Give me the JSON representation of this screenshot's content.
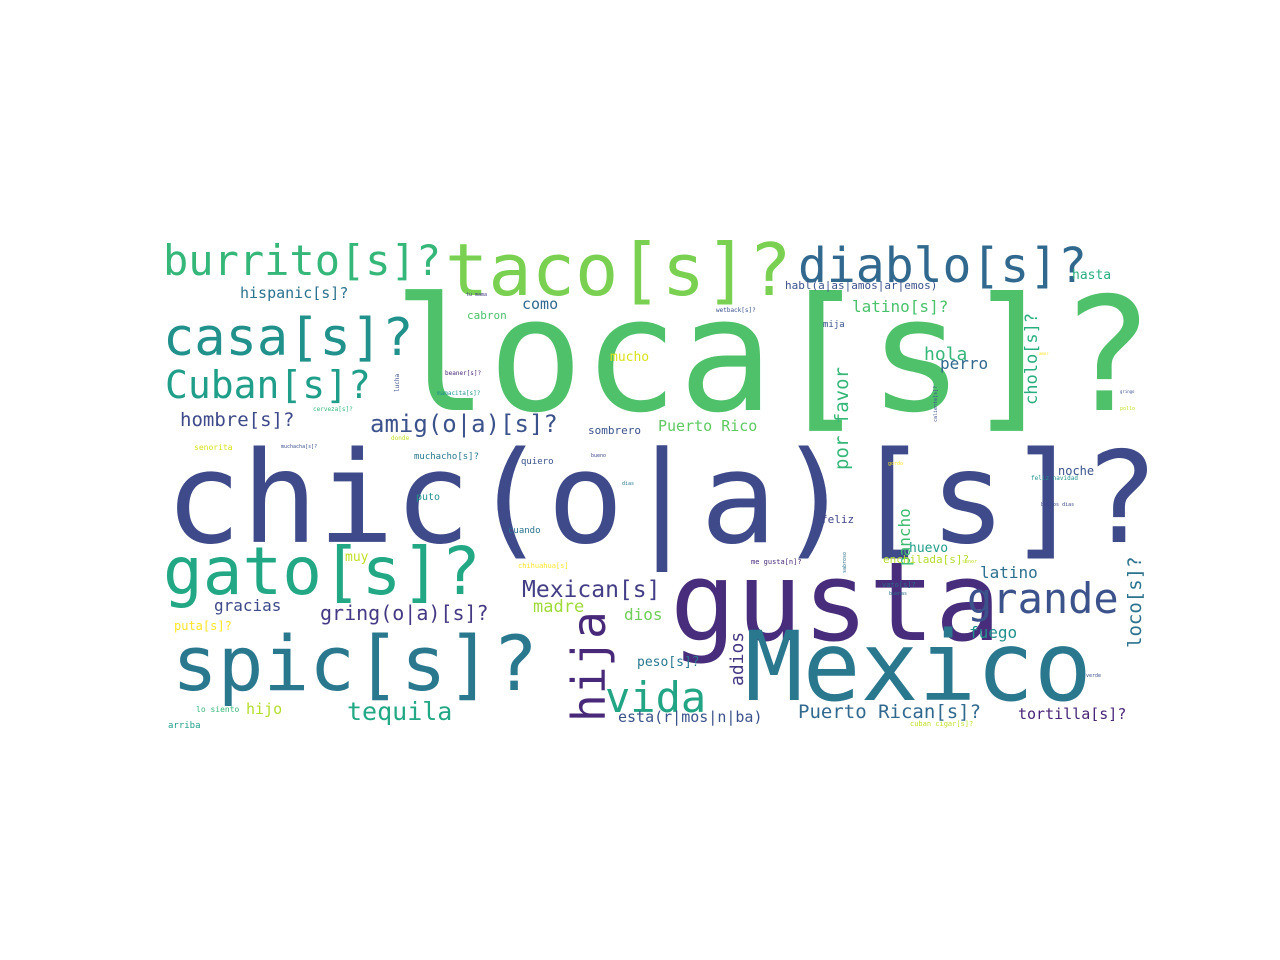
{
  "words": [
    {
      "text": "loca[s]?",
      "color": "#4fc16a"
    },
    {
      "text": "chic(o|a)[s]?",
      "color": "#3e4a89"
    },
    {
      "text": "gusta",
      "color": "#472d7b"
    },
    {
      "text": "Mexico",
      "color": "#2a788e"
    },
    {
      "text": "taco[s]?",
      "color": "#7ad151"
    },
    {
      "text": "spic[s]?",
      "color": "#2a788e"
    },
    {
      "text": "gato[s]?",
      "color": "#22a884"
    },
    {
      "text": "diablo[s]?",
      "color": "#31688e"
    },
    {
      "text": "burrito[s]?",
      "color": "#35b779"
    },
    {
      "text": "casa[s]?",
      "color": "#21918c"
    },
    {
      "text": "Cuban[s]?",
      "color": "#1f9e89"
    },
    {
      "text": "grande",
      "color": "#3b528b"
    },
    {
      "text": "hija",
      "color": "#482878"
    },
    {
      "text": "vida",
      "color": "#21a585"
    },
    {
      "text": "tequila",
      "color": "#22a884"
    },
    {
      "text": "amig(o|a)[s]?",
      "color": "#3b528b"
    },
    {
      "text": "Mexican[s]",
      "color": "#433e85"
    },
    {
      "text": "gring(o|a)[s]?",
      "color": "#443983"
    },
    {
      "text": "hombre[s]?",
      "color": "#3e4989"
    },
    {
      "text": "hispanic[s]?",
      "color": "#2c728e"
    },
    {
      "text": "Puerto Rican[s]?",
      "color": "#31688e"
    },
    {
      "text": "tortilla[s]?",
      "color": "#482677"
    },
    {
      "text": "esta(r|mos|n|ba)",
      "color": "#3b528b"
    },
    {
      "text": "Puerto Rico",
      "color": "#5ec962"
    },
    {
      "text": "por favor",
      "color": "#35b779"
    },
    {
      "text": "pancho",
      "color": "#3fbc73"
    },
    {
      "text": "cholo[s]?",
      "color": "#29af7f"
    },
    {
      "text": "loco[s]?",
      "color": "#2c728e"
    },
    {
      "text": "adios",
      "color": "#443983"
    },
    {
      "text": "latino[s]?",
      "color": "#4ac16d"
    },
    {
      "text": "latino",
      "color": "#2d708e"
    },
    {
      "text": "hola",
      "color": "#35b779"
    },
    {
      "text": "perro",
      "color": "#31688e"
    },
    {
      "text": "gracias",
      "color": "#3e4989"
    },
    {
      "text": "madre",
      "color": "#a0da39"
    },
    {
      "text": "dios",
      "color": "#6ece58"
    },
    {
      "text": "fuego",
      "color": "#21918c"
    },
    {
      "text": "peso[s]?",
      "color": "#2a788e"
    },
    {
      "text": "hijo",
      "color": "#b5de2b"
    },
    {
      "text": "como",
      "color": "#31688e"
    },
    {
      "text": "mucho",
      "color": "#d8e219"
    },
    {
      "text": "huevo",
      "color": "#1f9e89"
    },
    {
      "text": "hasta",
      "color": "#29af7f"
    },
    {
      "text": "noche",
      "color": "#3b528b"
    },
    {
      "text": "feliz",
      "color": "#414487"
    },
    {
      "text": "sombrero",
      "color": "#3b528b"
    },
    {
      "text": "puta[s]?",
      "color": "#fde725"
    },
    {
      "text": "enchilada[s]?",
      "color": "#b5de2b"
    },
    {
      "text": "muy",
      "color": "#c2df23"
    },
    {
      "text": "habl(a|as|amos|ar|emos)",
      "color": "#3b528b"
    },
    {
      "text": "cabron",
      "color": "#4ac16d"
    },
    {
      "text": "mija",
      "color": "#3b528b"
    },
    {
      "text": "muchacho[s]?",
      "color": "#2a788e"
    },
    {
      "text": "puto",
      "color": "#21918c"
    },
    {
      "text": "cuando",
      "color": "#2c728e"
    },
    {
      "text": "quiero",
      "color": "#3b528b"
    },
    {
      "text": "arriba",
      "color": "#1f9e89"
    },
    {
      "text": "lo siento",
      "color": "#35b779"
    },
    {
      "text": "senorita",
      "color": "#d8e219"
    },
    {
      "text": "chihuahua[s]",
      "color": "#fde725"
    },
    {
      "text": "me gusta[n]?",
      "color": "#482878"
    },
    {
      "text": "cuban cigar[s]?",
      "color": "#c2df23"
    },
    {
      "text": "vato[s]?",
      "color": "#31688e"
    },
    {
      "text": "feliz navidad",
      "color": "#21918c"
    },
    {
      "text": "buenos dias",
      "color": "#3e4989"
    },
    {
      "text": "wetback[s]?",
      "color": "#3b528b"
    },
    {
      "text": "beaner[s]?",
      "color": "#482878"
    },
    {
      "text": "mamacita[s]?",
      "color": "#21918c"
    },
    {
      "text": "cerveza[s]?",
      "color": "#35b779"
    },
    {
      "text": "donde",
      "color": "#c2df23"
    },
    {
      "text": "muchacha[s]?",
      "color": "#3b528b"
    },
    {
      "text": "lucha",
      "color": "#3b528b"
    },
    {
      "text": "buenas",
      "color": "#2c728e"
    },
    {
      "text": "gordo",
      "color": "#fde725"
    },
    {
      "text": "verde",
      "color": "#3b528b"
    },
    {
      "text": "dias",
      "color": "#2a788e"
    },
    {
      "text": "bueno",
      "color": "#3e4989"
    },
    {
      "text": "tu mama",
      "color": "#443983"
    },
    {
      "text": "sabroso",
      "color": "#2c728e"
    },
    {
      "text": "caliente[s]?",
      "color": "#3b528b"
    },
    {
      "text": "pollo",
      "color": "#c2df23"
    },
    {
      "text": "amor",
      "color": "#fde725"
    },
    {
      "text": "gringo",
      "color": "#3b528b"
    },
    {
      "text": "senor",
      "color": "#c2df23"
    }
  ]
}
